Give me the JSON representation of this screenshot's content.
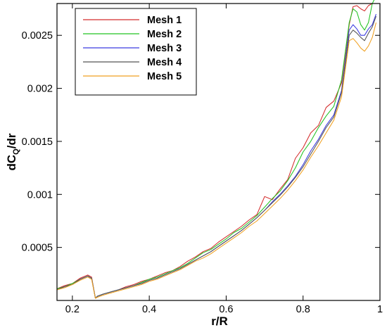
{
  "chart_data": {
    "type": "line",
    "title": "",
    "xlabel": "r/R",
    "ylabel_main": "dC",
    "ylabel_sub": "Q",
    "ylabel_tail": "/dr",
    "xlim": [
      0.16,
      1.0
    ],
    "ylim": [
      0.0,
      0.0028
    ],
    "x_ticks": [
      0.2,
      0.4,
      0.6,
      0.8,
      1.0
    ],
    "x_tick_labels": [
      "0.2",
      "0.4",
      "0.6",
      "0.8",
      "1"
    ],
    "y_ticks": [
      0.0005,
      0.001,
      0.0015,
      0.002,
      0.0025
    ],
    "y_tick_labels": [
      "0.0005",
      "0.001",
      "0.0015",
      "0.002",
      "0.0025"
    ],
    "grid": false,
    "legend_position": "top-left",
    "series": [
      {
        "name": "Mesh 1",
        "color": "#d42a2a",
        "x": [
          0.16,
          0.18,
          0.2,
          0.22,
          0.24,
          0.25,
          0.26,
          0.265,
          0.28,
          0.3,
          0.32,
          0.34,
          0.36,
          0.38,
          0.4,
          0.42,
          0.44,
          0.46,
          0.48,
          0.5,
          0.52,
          0.54,
          0.56,
          0.58,
          0.6,
          0.62,
          0.64,
          0.66,
          0.68,
          0.7,
          0.72,
          0.74,
          0.76,
          0.78,
          0.8,
          0.82,
          0.84,
          0.86,
          0.88,
          0.9,
          0.92,
          0.93,
          0.94,
          0.95,
          0.96,
          0.97,
          0.98,
          0.99
        ],
        "y": [
          0.00011,
          0.00014,
          0.00016,
          0.00021,
          0.00024,
          0.00022,
          2e-05,
          4e-05,
          6e-05,
          8e-05,
          0.0001,
          0.00013,
          0.00015,
          0.00018,
          0.0002,
          0.00023,
          0.00026,
          0.00028,
          0.00032,
          0.00037,
          0.00041,
          0.00046,
          0.00049,
          0.00055,
          0.0006,
          0.00065,
          0.0007,
          0.00076,
          0.00081,
          0.00098,
          0.00095,
          0.00105,
          0.00114,
          0.00134,
          0.00144,
          0.00158,
          0.00165,
          0.00182,
          0.00188,
          0.00205,
          0.0026,
          0.00277,
          0.00278,
          0.00275,
          0.00273,
          0.00278,
          0.0028,
          0.0028
        ]
      },
      {
        "name": "Mesh 2",
        "color": "#22c322",
        "x": [
          0.16,
          0.18,
          0.2,
          0.22,
          0.24,
          0.25,
          0.26,
          0.265,
          0.28,
          0.3,
          0.32,
          0.34,
          0.36,
          0.38,
          0.4,
          0.42,
          0.44,
          0.46,
          0.48,
          0.5,
          0.52,
          0.54,
          0.56,
          0.58,
          0.6,
          0.62,
          0.64,
          0.66,
          0.68,
          0.7,
          0.72,
          0.74,
          0.76,
          0.78,
          0.8,
          0.82,
          0.84,
          0.86,
          0.88,
          0.9,
          0.92,
          0.93,
          0.94,
          0.95,
          0.96,
          0.97,
          0.98,
          0.99
        ],
        "y": [
          0.00011,
          0.00013,
          0.00016,
          0.0002,
          0.00023,
          0.00021,
          2e-05,
          4e-05,
          6e-05,
          8e-05,
          0.0001,
          0.00012,
          0.00014,
          0.00017,
          0.0002,
          0.00022,
          0.00025,
          0.00028,
          0.00031,
          0.00035,
          0.0004,
          0.00045,
          0.00048,
          0.00053,
          0.00058,
          0.00064,
          0.00068,
          0.00074,
          0.0008,
          0.00088,
          0.00096,
          0.00103,
          0.00113,
          0.00125,
          0.0014,
          0.0015,
          0.00163,
          0.00174,
          0.00183,
          0.00208,
          0.00262,
          0.00275,
          0.00272,
          0.0026,
          0.00255,
          0.00262,
          0.0028,
          0.00287
        ]
      },
      {
        "name": "Mesh 3",
        "color": "#3a3ae0",
        "x": [
          0.16,
          0.18,
          0.2,
          0.22,
          0.24,
          0.25,
          0.26,
          0.265,
          0.28,
          0.3,
          0.32,
          0.34,
          0.36,
          0.38,
          0.4,
          0.42,
          0.44,
          0.46,
          0.48,
          0.5,
          0.52,
          0.54,
          0.56,
          0.58,
          0.6,
          0.62,
          0.64,
          0.66,
          0.68,
          0.7,
          0.72,
          0.74,
          0.76,
          0.78,
          0.8,
          0.82,
          0.84,
          0.86,
          0.88,
          0.9,
          0.92,
          0.93,
          0.94,
          0.95,
          0.96,
          0.97,
          0.98,
          0.99
        ],
        "y": [
          0.0001,
          0.00013,
          0.00015,
          0.0002,
          0.00023,
          0.00021,
          2e-05,
          4e-05,
          6e-05,
          8e-05,
          0.0001,
          0.00012,
          0.00014,
          0.00016,
          0.00019,
          0.00021,
          0.00024,
          0.00027,
          0.0003,
          0.00034,
          0.00038,
          0.00042,
          0.00046,
          0.00051,
          0.00056,
          0.00061,
          0.00066,
          0.00072,
          0.00078,
          0.00085,
          0.00093,
          0.001,
          0.00108,
          0.00117,
          0.00128,
          0.00141,
          0.00152,
          0.00165,
          0.00175,
          0.00198,
          0.00255,
          0.0026,
          0.00256,
          0.0025,
          0.0025,
          0.00256,
          0.0026,
          0.0027
        ]
      },
      {
        "name": "Mesh 4",
        "color": "#555555",
        "x": [
          0.16,
          0.18,
          0.2,
          0.22,
          0.24,
          0.25,
          0.26,
          0.265,
          0.28,
          0.3,
          0.32,
          0.34,
          0.36,
          0.38,
          0.4,
          0.42,
          0.44,
          0.46,
          0.48,
          0.5,
          0.52,
          0.54,
          0.56,
          0.58,
          0.6,
          0.62,
          0.64,
          0.66,
          0.68,
          0.7,
          0.72,
          0.74,
          0.76,
          0.78,
          0.8,
          0.82,
          0.84,
          0.86,
          0.88,
          0.9,
          0.92,
          0.93,
          0.94,
          0.95,
          0.96,
          0.97,
          0.98,
          0.99
        ],
        "y": [
          0.0001,
          0.00013,
          0.00015,
          0.0002,
          0.00023,
          0.00021,
          2e-05,
          4e-05,
          6e-05,
          8e-05,
          0.0001,
          0.00012,
          0.00014,
          0.00016,
          0.00019,
          0.00021,
          0.00024,
          0.00027,
          0.0003,
          0.00034,
          0.00038,
          0.00042,
          0.00046,
          0.00051,
          0.00056,
          0.00061,
          0.00066,
          0.00072,
          0.00078,
          0.00085,
          0.00092,
          0.00099,
          0.00107,
          0.00116,
          0.00126,
          0.00138,
          0.0015,
          0.00163,
          0.00173,
          0.00196,
          0.0025,
          0.00255,
          0.00252,
          0.00248,
          0.00245,
          0.00252,
          0.00258,
          0.00268
        ]
      },
      {
        "name": "Mesh 5",
        "color": "#f0a020",
        "x": [
          0.16,
          0.18,
          0.2,
          0.22,
          0.24,
          0.25,
          0.26,
          0.265,
          0.28,
          0.3,
          0.32,
          0.34,
          0.36,
          0.38,
          0.4,
          0.42,
          0.44,
          0.46,
          0.48,
          0.5,
          0.52,
          0.54,
          0.56,
          0.58,
          0.6,
          0.62,
          0.64,
          0.66,
          0.68,
          0.7,
          0.72,
          0.74,
          0.76,
          0.78,
          0.8,
          0.82,
          0.84,
          0.86,
          0.88,
          0.9,
          0.92,
          0.93,
          0.94,
          0.95,
          0.96,
          0.97,
          0.98,
          0.99
        ],
        "y": [
          0.0001,
          0.00012,
          0.00015,
          0.00019,
          0.00022,
          0.0002,
          2e-05,
          3e-05,
          5e-05,
          7e-05,
          9e-05,
          0.00011,
          0.00013,
          0.00015,
          0.00018,
          0.0002,
          0.00023,
          0.00026,
          0.00029,
          0.00033,
          0.00037,
          0.0004,
          0.00044,
          0.00049,
          0.00054,
          0.00059,
          0.00064,
          0.0007,
          0.00075,
          0.00082,
          0.00089,
          0.00096,
          0.00104,
          0.00113,
          0.00123,
          0.00135,
          0.00146,
          0.00158,
          0.0017,
          0.00192,
          0.00245,
          0.00247,
          0.00243,
          0.00238,
          0.00235,
          0.0024,
          0.00248,
          0.00262
        ]
      }
    ]
  }
}
